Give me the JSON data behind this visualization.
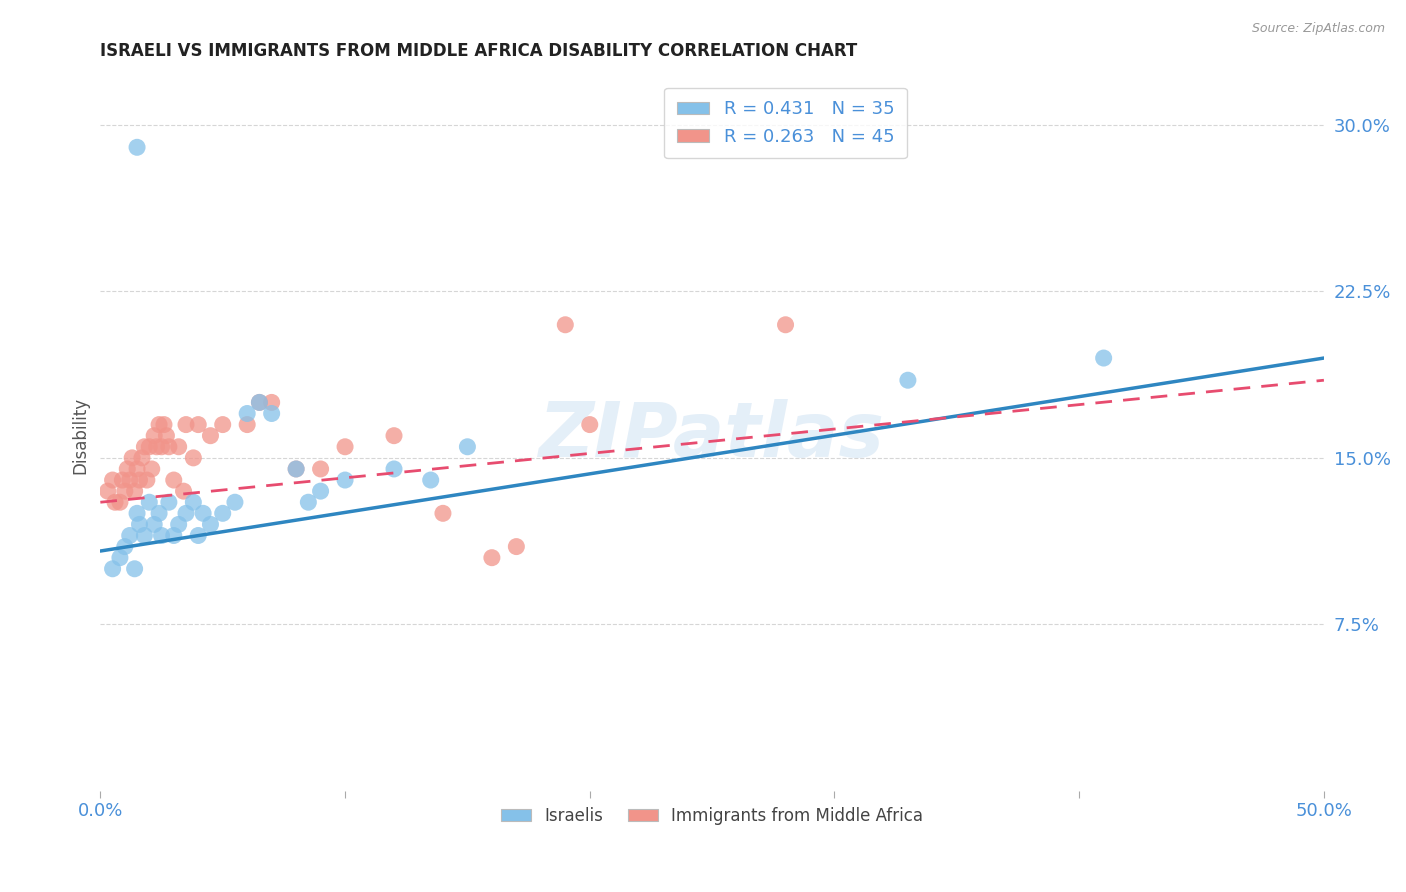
{
  "title": "ISRAELI VS IMMIGRANTS FROM MIDDLE AFRICA DISABILITY CORRELATION CHART",
  "source": "Source: ZipAtlas.com",
  "ylabel": "Disability",
  "xlim": [
    0.0,
    0.5
  ],
  "ylim": [
    0.0,
    0.32
  ],
  "xticks": [
    0.0,
    0.1,
    0.2,
    0.3,
    0.4,
    0.5
  ],
  "xtick_labels": [
    "0.0%",
    "",
    "",
    "",
    "",
    "50.0%"
  ],
  "ytick_labels": [
    "7.5%",
    "15.0%",
    "22.5%",
    "30.0%"
  ],
  "yticks": [
    0.075,
    0.15,
    0.225,
    0.3
  ],
  "watermark": "ZIPatlas",
  "legend_label1": "Israelis",
  "legend_label2": "Immigrants from Middle Africa",
  "color_blue": "#85C1E9",
  "color_pink": "#F1948A",
  "color_blue_line": "#2E86C1",
  "color_pink_line": "#E74C6F",
  "axis_color": "#4A90D9",
  "blue_line_start_y": 0.108,
  "blue_line_end_y": 0.195,
  "pink_line_start_y": 0.13,
  "pink_line_end_y": 0.185,
  "israelis_x": [
    0.005,
    0.008,
    0.01,
    0.012,
    0.014,
    0.015,
    0.016,
    0.018,
    0.02,
    0.022,
    0.024,
    0.025,
    0.028,
    0.03,
    0.032,
    0.035,
    0.038,
    0.04,
    0.042,
    0.045,
    0.05,
    0.055,
    0.06,
    0.065,
    0.07,
    0.08,
    0.085,
    0.09,
    0.1,
    0.12,
    0.135,
    0.15,
    0.33,
    0.41,
    0.015
  ],
  "israelis_y": [
    0.1,
    0.105,
    0.11,
    0.115,
    0.1,
    0.125,
    0.12,
    0.115,
    0.13,
    0.12,
    0.125,
    0.115,
    0.13,
    0.115,
    0.12,
    0.125,
    0.13,
    0.115,
    0.125,
    0.12,
    0.125,
    0.13,
    0.17,
    0.175,
    0.17,
    0.145,
    0.13,
    0.135,
    0.14,
    0.145,
    0.14,
    0.155,
    0.185,
    0.195,
    0.29
  ],
  "immigrants_x": [
    0.003,
    0.005,
    0.006,
    0.008,
    0.009,
    0.01,
    0.011,
    0.012,
    0.013,
    0.014,
    0.015,
    0.016,
    0.017,
    0.018,
    0.019,
    0.02,
    0.021,
    0.022,
    0.023,
    0.024,
    0.025,
    0.026,
    0.027,
    0.028,
    0.03,
    0.032,
    0.034,
    0.035,
    0.038,
    0.04,
    0.045,
    0.05,
    0.06,
    0.065,
    0.07,
    0.08,
    0.09,
    0.1,
    0.12,
    0.14,
    0.16,
    0.17,
    0.19,
    0.2,
    0.28
  ],
  "immigrants_y": [
    0.135,
    0.14,
    0.13,
    0.13,
    0.14,
    0.135,
    0.145,
    0.14,
    0.15,
    0.135,
    0.145,
    0.14,
    0.15,
    0.155,
    0.14,
    0.155,
    0.145,
    0.16,
    0.155,
    0.165,
    0.155,
    0.165,
    0.16,
    0.155,
    0.14,
    0.155,
    0.135,
    0.165,
    0.15,
    0.165,
    0.16,
    0.165,
    0.165,
    0.175,
    0.175,
    0.145,
    0.145,
    0.155,
    0.16,
    0.125,
    0.105,
    0.11,
    0.21,
    0.165,
    0.21
  ]
}
